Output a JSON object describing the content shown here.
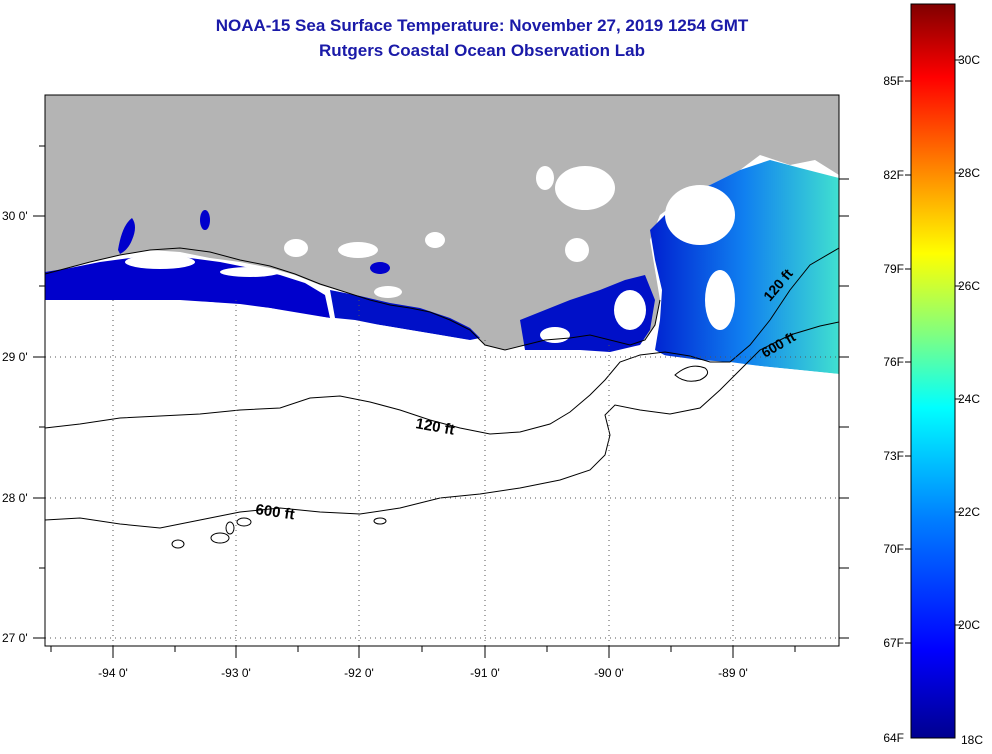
{
  "title": "NOAA-15 Sea Surface Temperature:  November 27, 2019 1254 GMT",
  "subtitle": "Rutgers Coastal Ocean Observation Lab",
  "lon_labels": [
    "-94 0'",
    "-93 0'",
    "-92 0'",
    "-91 0'",
    "-90 0'",
    "-89 0'"
  ],
  "lat_labels": [
    "30 0'",
    "29 0'",
    "28 0'",
    "27 0'"
  ],
  "contours": [
    {
      "label": "120 ft",
      "depth_ft": 120
    },
    {
      "label": "600 ft",
      "depth_ft": 600
    }
  ],
  "contour_labels_east": [
    "120 ft",
    "600 ft"
  ],
  "colorbar": {
    "fahrenheit_ticks": [
      "85F",
      "82F",
      "79F",
      "76F",
      "73F",
      "70F",
      "67F",
      "64F"
    ],
    "celsius_ticks": [
      "30C",
      "28C",
      "26C",
      "24C",
      "22C",
      "20C",
      "18C"
    ],
    "range_c": [
      18,
      31
    ],
    "colors": [
      "#00008f",
      "#0000ff",
      "#0080ff",
      "#00ffff",
      "#80ff80",
      "#ffff00",
      "#ff8000",
      "#ff0000",
      "#800000"
    ]
  },
  "land_color": "#b4b4b4",
  "water_color": "#0000cc"
}
